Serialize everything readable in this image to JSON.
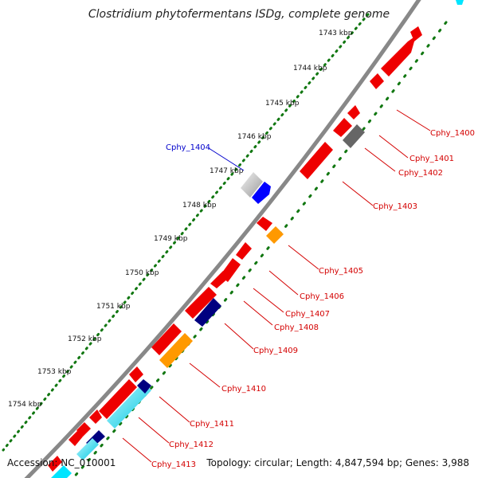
{
  "title": "Clostridium phytofermentans ISDg, complete genome",
  "footer": {
    "accession": "Accession: NC_010001",
    "summary": "Topology: circular; Length: 4,847,594 bp; Genes: 3,988"
  },
  "kbp_ticks": [
    "1743 kbp",
    "1744 kbp",
    "1745 kbp",
    "1746 kbp",
    "1747 kbp",
    "1748 kbp",
    "1749 kbp",
    "1750 kbp",
    "1751 kbp",
    "1752 kbp",
    "1753 kbp",
    "1754 kbp"
  ],
  "gene_labels": [
    {
      "text": "Cphy_1400",
      "color": "#d40000"
    },
    {
      "text": "Cphy_1401",
      "color": "#d40000"
    },
    {
      "text": "Cphy_1402",
      "color": "#d40000"
    },
    {
      "text": "Cphy_1403",
      "color": "#d40000"
    },
    {
      "text": "Cphy_1404",
      "color": "#0000cc"
    },
    {
      "text": "Cphy_1405",
      "color": "#d40000"
    },
    {
      "text": "Cphy_1406",
      "color": "#d40000"
    },
    {
      "text": "Cphy_1407",
      "color": "#d40000"
    },
    {
      "text": "Cphy_1408",
      "color": "#d40000"
    },
    {
      "text": "Cphy_1409",
      "color": "#d40000"
    },
    {
      "text": "Cphy_1410",
      "color": "#d40000"
    },
    {
      "text": "Cphy_1411",
      "color": "#d40000"
    },
    {
      "text": "Cphy_1412",
      "color": "#d40000"
    },
    {
      "text": "Cphy_1413",
      "color": "#d40000"
    }
  ],
  "colors": {
    "gene_red": "#ee0000",
    "gene_orange": "#ff9900",
    "gene_blue": "#0000ff",
    "gene_navy": "#000080",
    "gene_gray": "#777777",
    "gene_light_gray": "#cccccc",
    "gene_cyan": "#00e5ff",
    "backbone": "#888888",
    "dotted_track": "#117711"
  }
}
